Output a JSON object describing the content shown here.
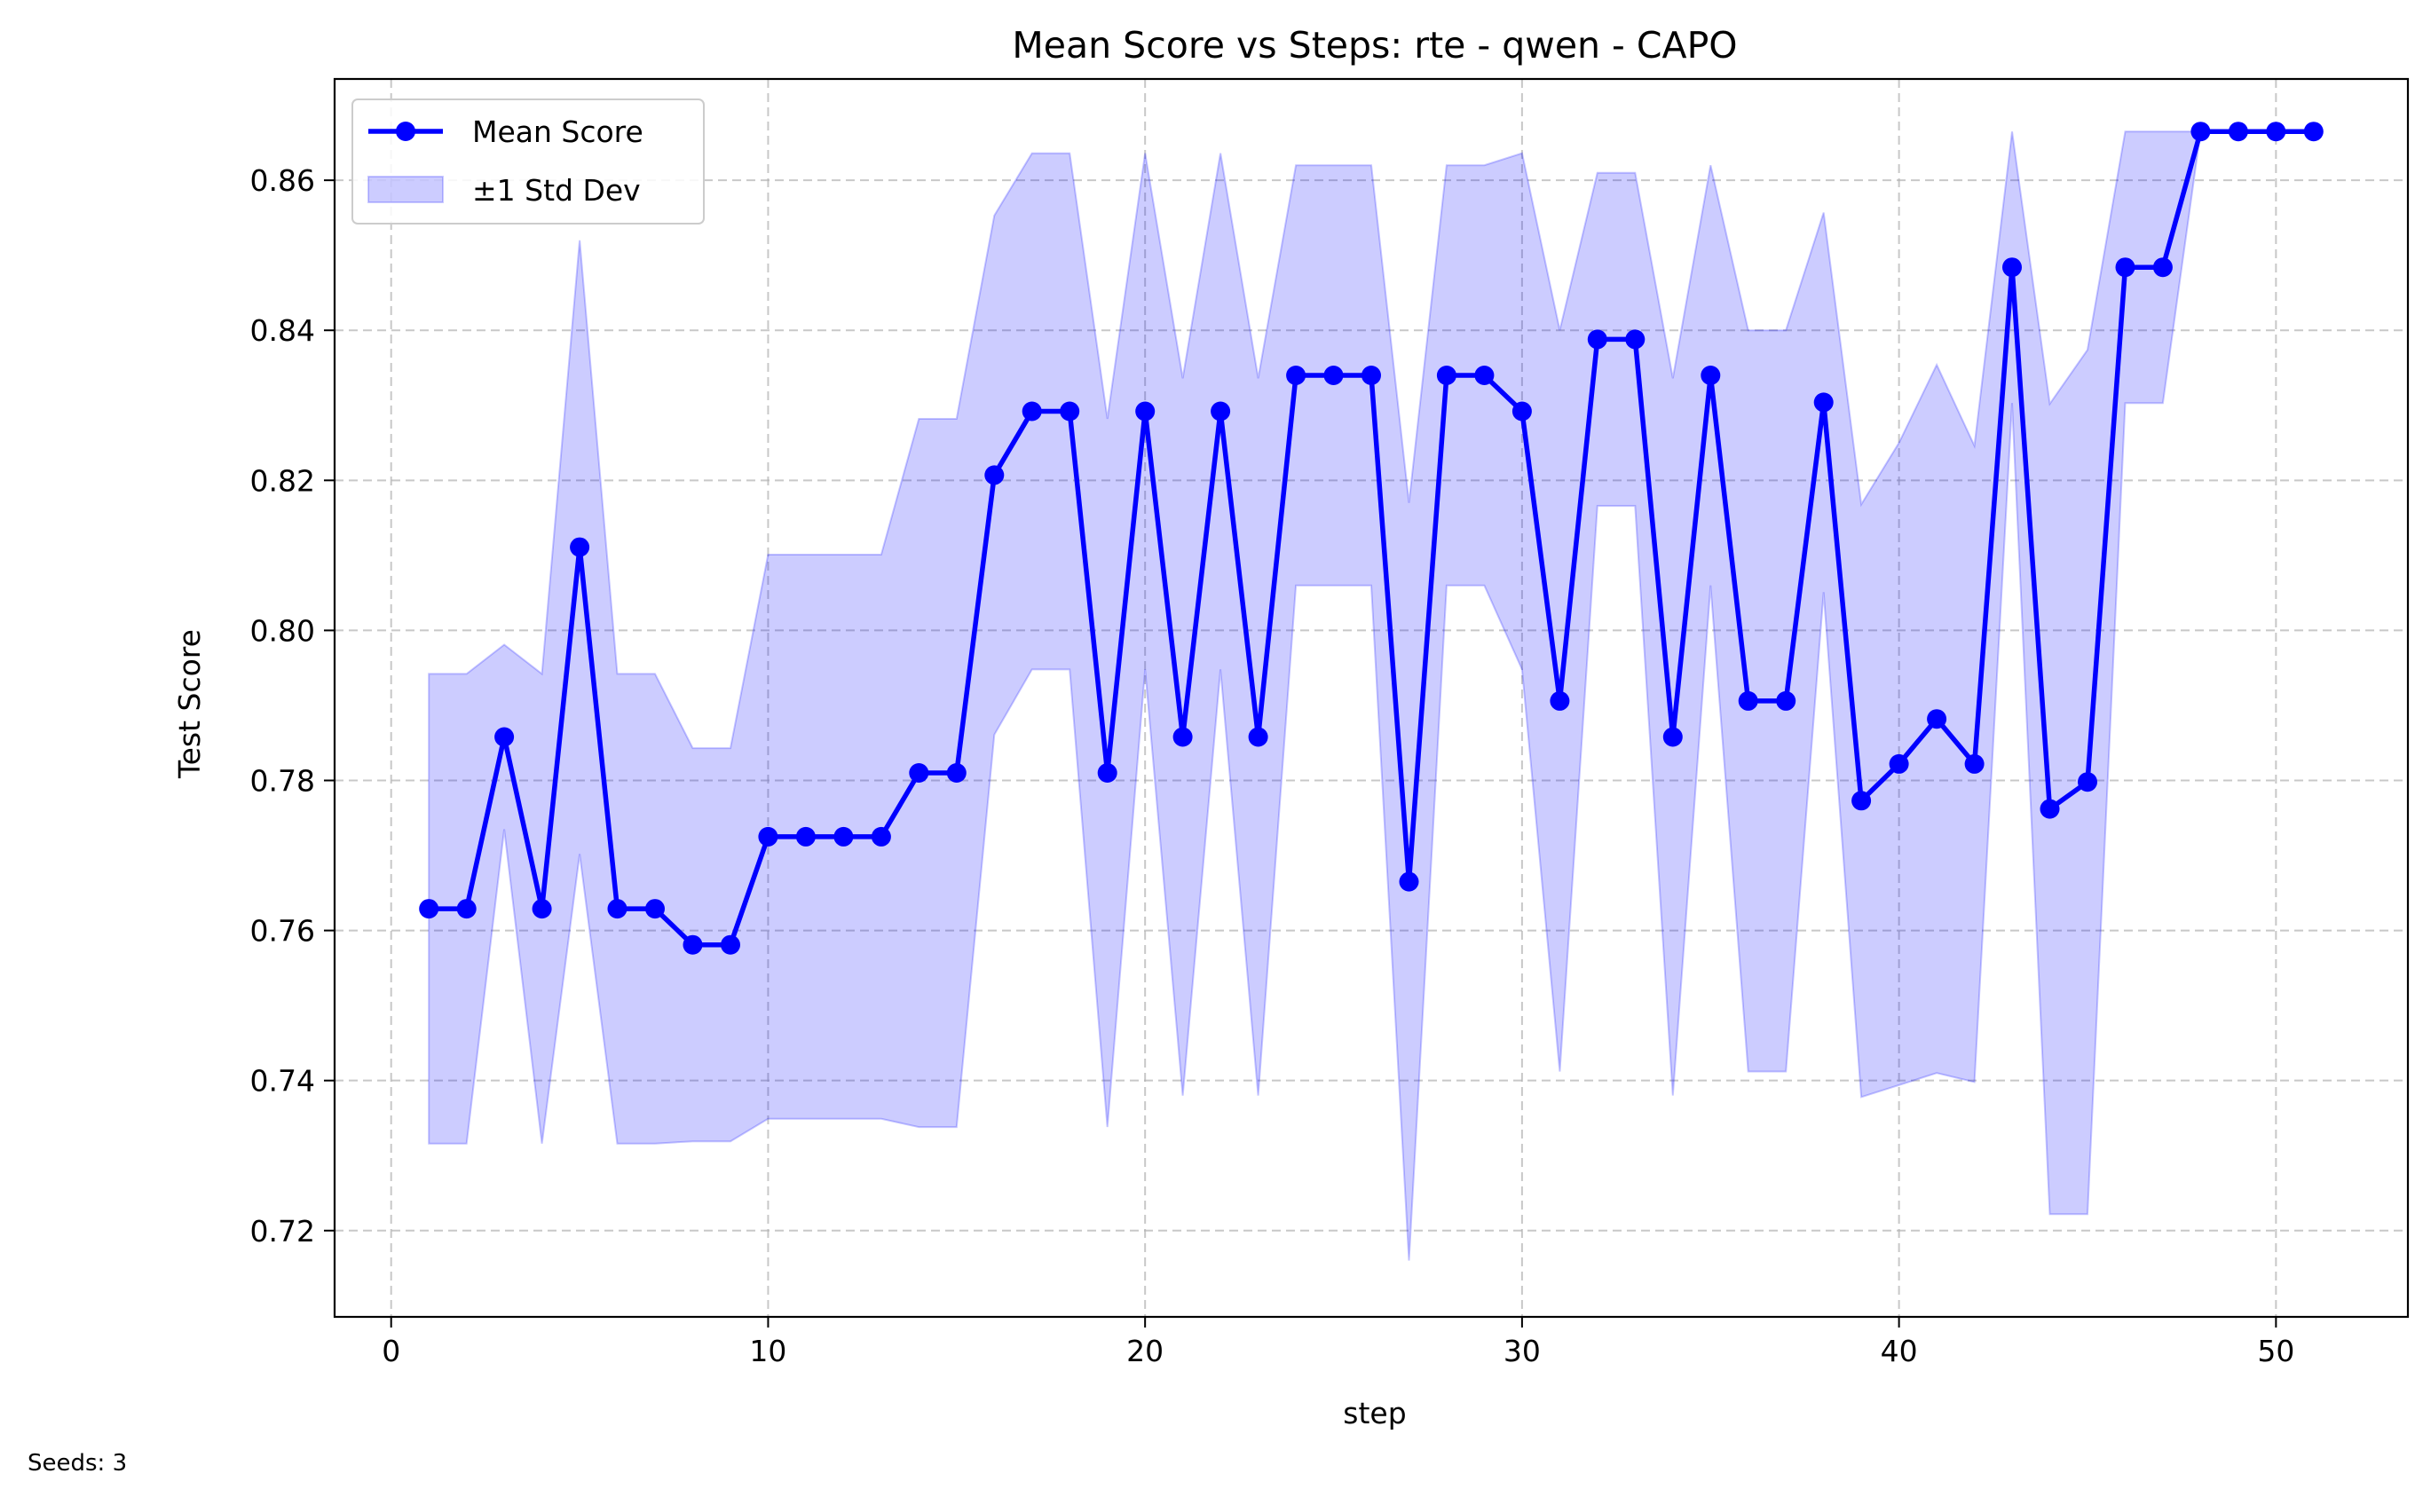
{
  "chart_data": {
    "type": "line",
    "title": "Mean Score vs Steps: rte - qwen - CAPO",
    "xlabel": "step",
    "ylabel": "Test Score",
    "xlim": [
      -1.5,
      53.5
    ],
    "ylim": [
      0.7085,
      0.8735
    ],
    "xticks": [
      0,
      10,
      20,
      30,
      40,
      50
    ],
    "yticks": [
      0.72,
      0.74,
      0.76,
      0.78,
      0.8,
      0.82,
      0.84,
      0.86
    ],
    "grid": true,
    "legend_position": "top-left",
    "x": [
      1,
      2,
      3,
      4,
      5,
      6,
      7,
      8,
      9,
      10,
      11,
      12,
      13,
      14,
      15,
      16,
      17,
      18,
      19,
      20,
      21,
      22,
      23,
      24,
      25,
      26,
      27,
      28,
      29,
      30,
      31,
      32,
      33,
      34,
      35,
      36,
      37,
      38,
      39,
      40,
      41,
      42,
      43,
      44,
      45,
      46,
      47,
      48,
      49,
      50,
      51
    ],
    "series": [
      {
        "name": "Mean Score",
        "kind": "line",
        "color": "#0000ff",
        "values": [
          0.7629,
          0.7629,
          0.7858,
          0.7629,
          0.8111,
          0.7629,
          0.7629,
          0.7581,
          0.7581,
          0.7725,
          0.7725,
          0.7725,
          0.7725,
          0.781,
          0.781,
          0.8207,
          0.8292,
          0.8292,
          0.781,
          0.8292,
          0.7858,
          0.8292,
          0.7858,
          0.834,
          0.834,
          0.834,
          0.7665,
          0.834,
          0.834,
          0.8292,
          0.7906,
          0.8388,
          0.8388,
          0.7858,
          0.834,
          0.7906,
          0.7906,
          0.8304,
          0.7773,
          0.7822,
          0.7882,
          0.7822,
          0.8484,
          0.7762,
          0.7798,
          0.8484,
          0.8484,
          0.8665,
          0.8665,
          0.8665,
          0.8665
        ]
      },
      {
        "name": "±1 Std Dev",
        "kind": "band",
        "color": "#0000ff",
        "opacity": 0.2,
        "upper": [
          0.7942,
          0.7942,
          0.7981,
          0.7942,
          0.852,
          0.7942,
          0.7942,
          0.7843,
          0.7843,
          0.8101,
          0.8101,
          0.8101,
          0.8101,
          0.8282,
          0.8282,
          0.8553,
          0.8636,
          0.8636,
          0.8282,
          0.8636,
          0.8336,
          0.8636,
          0.8336,
          0.862,
          0.862,
          0.862,
          0.817,
          0.862,
          0.862,
          0.8636,
          0.84,
          0.861,
          0.861,
          0.8336,
          0.862,
          0.84,
          0.84,
          0.8557,
          0.8168,
          0.825,
          0.8354,
          0.8246,
          0.8665,
          0.8302,
          0.8374,
          0.8665,
          0.8665,
          0.8665,
          0.8665,
          0.8665,
          0.8665
        ],
        "lower": [
          0.7316,
          0.7316,
          0.7735,
          0.7316,
          0.7702,
          0.7316,
          0.7316,
          0.7319,
          0.7319,
          0.7349,
          0.7349,
          0.7349,
          0.7349,
          0.7338,
          0.7338,
          0.7861,
          0.7948,
          0.7948,
          0.7338,
          0.7948,
          0.738,
          0.7948,
          0.738,
          0.806,
          0.806,
          0.806,
          0.716,
          0.806,
          0.806,
          0.7948,
          0.7412,
          0.8166,
          0.8166,
          0.738,
          0.806,
          0.7412,
          0.7412,
          0.8051,
          0.7378,
          0.7394,
          0.741,
          0.7398,
          0.8303,
          0.7222,
          0.7222,
          0.8303,
          0.8303,
          0.8665,
          0.8665,
          0.8665,
          0.8665
        ]
      }
    ]
  },
  "footnote": "Seeds: 3"
}
